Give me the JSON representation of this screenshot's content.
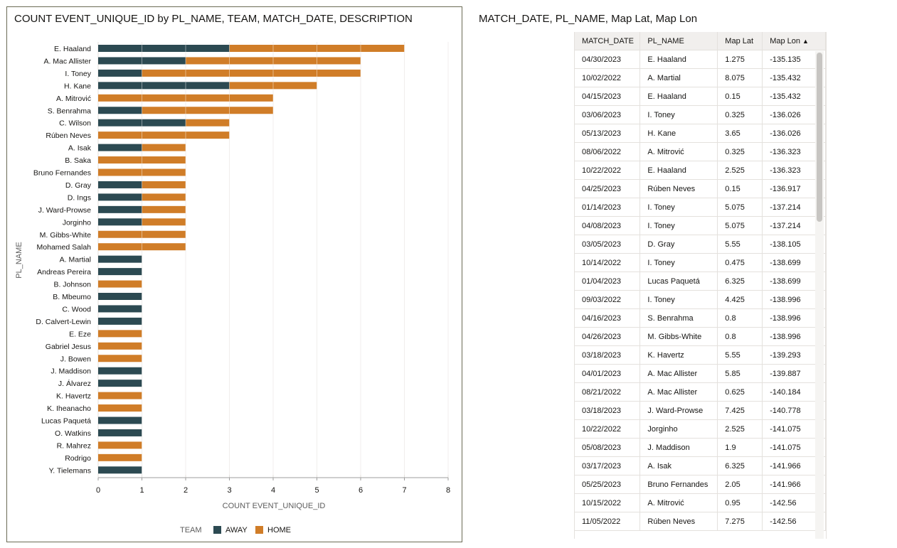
{
  "left_panel": {
    "title": "COUNT EVENT_UNIQUE_ID by PL_NAME, TEAM, MATCH_DATE, DESCRIPTION"
  },
  "right_panel": {
    "title": "MATCH_DATE, PL_NAME, Map Lat, Map Lon",
    "columns": [
      "MATCH_DATE",
      "PL_NAME",
      "Map Lat",
      "Map Lon"
    ],
    "sort_icon": "triangle-up",
    "rows": [
      [
        "04/30/2023",
        "E. Haaland",
        "1.275",
        "-135.135"
      ],
      [
        "10/02/2022",
        "A. Martial",
        "8.075",
        "-135.432"
      ],
      [
        "04/15/2023",
        "E. Haaland",
        "0.15",
        "-135.432"
      ],
      [
        "03/06/2023",
        "I. Toney",
        "0.325",
        "-136.026"
      ],
      [
        "05/13/2023",
        "H. Kane",
        "3.65",
        "-136.026"
      ],
      [
        "08/06/2022",
        "A. Mitrović",
        "0.325",
        "-136.323"
      ],
      [
        "10/22/2022",
        "E. Haaland",
        "2.525",
        "-136.323"
      ],
      [
        "04/25/2023",
        "Rúben Neves",
        "0.15",
        "-136.917"
      ],
      [
        "01/14/2023",
        "I. Toney",
        "5.075",
        "-137.214"
      ],
      [
        "04/08/2023",
        "I. Toney",
        "5.075",
        "-137.214"
      ],
      [
        "03/05/2023",
        "D. Gray",
        "5.55",
        "-138.105"
      ],
      [
        "10/14/2022",
        "I. Toney",
        "0.475",
        "-138.699"
      ],
      [
        "01/04/2023",
        "Lucas Paquetá",
        "6.325",
        "-138.699"
      ],
      [
        "09/03/2022",
        "I. Toney",
        "4.425",
        "-138.996"
      ],
      [
        "04/16/2023",
        "S. Benrahma",
        "0.8",
        "-138.996"
      ],
      [
        "04/26/2023",
        "M. Gibbs-White",
        "0.8",
        "-138.996"
      ],
      [
        "03/18/2023",
        "K. Havertz",
        "5.55",
        "-139.293"
      ],
      [
        "04/01/2023",
        "A. Mac Allister",
        "5.85",
        "-139.887"
      ],
      [
        "08/21/2022",
        "A. Mac Allister",
        "0.625",
        "-140.184"
      ],
      [
        "03/18/2023",
        "J. Ward-Prowse",
        "7.425",
        "-140.778"
      ],
      [
        "10/22/2022",
        "Jorginho",
        "2.525",
        "-141.075"
      ],
      [
        "05/08/2023",
        "J. Maddison",
        "1.9",
        "-141.075"
      ],
      [
        "03/17/2023",
        "A. Isak",
        "6.325",
        "-141.966"
      ],
      [
        "05/25/2023",
        "Bruno Fernandes",
        "2.05",
        "-141.966"
      ],
      [
        "10/15/2022",
        "A. Mitrović",
        "0.95",
        "-142.56"
      ],
      [
        "11/05/2022",
        "Rúben Neves",
        "7.275",
        "-142.56"
      ]
    ]
  },
  "chart_data": {
    "type": "bar",
    "orientation": "horizontal",
    "stacked": true,
    "xlabel": "COUNT EVENT_UNIQUE_ID",
    "ylabel": "PL_NAME",
    "xlim": [
      0,
      8
    ],
    "xticks": [
      0,
      1,
      2,
      3,
      4,
      5,
      6,
      7,
      8
    ],
    "grid": true,
    "legend_title": "TEAM",
    "legend_position": "bottom",
    "categories": [
      "E. Haaland",
      "A. Mac Allister",
      "I. Toney",
      "H. Kane",
      "A. Mitrović",
      "S. Benrahma",
      "C. Wilson",
      "Rúben Neves",
      "A. Isak",
      "B. Saka",
      "Bruno Fernandes",
      "D. Gray",
      "D. Ings",
      "J. Ward-Prowse",
      "Jorginho",
      "M. Gibbs-White",
      "Mohamed Salah",
      "A. Martial",
      "Andreas Pereira",
      "B. Johnson",
      "B. Mbeumo",
      "C. Wood",
      "D. Calvert-Lewin",
      "E. Eze",
      "Gabriel Jesus",
      "J. Bowen",
      "J. Maddison",
      "J. Álvarez",
      "K. Havertz",
      "K. Iheanacho",
      "Lucas Paquetá",
      "O. Watkins",
      "R. Mahrez",
      "Rodrigo",
      "Y. Tielemans"
    ],
    "series": [
      {
        "name": "AWAY",
        "color": "#2c4a52",
        "values": [
          3,
          2,
          1,
          3,
          0,
          1,
          2,
          0,
          1,
          0,
          0,
          1,
          1,
          1,
          1,
          0,
          0,
          1,
          1,
          0,
          1,
          1,
          1,
          0,
          0,
          0,
          1,
          1,
          0,
          0,
          1,
          1,
          0,
          0,
          1
        ]
      },
      {
        "name": "HOME",
        "color": "#d07d28",
        "values": [
          4,
          4,
          5,
          2,
          4,
          3,
          1,
          3,
          1,
          2,
          2,
          1,
          1,
          1,
          1,
          2,
          2,
          0,
          0,
          1,
          0,
          0,
          0,
          1,
          1,
          1,
          0,
          0,
          1,
          1,
          0,
          0,
          1,
          1,
          0
        ]
      }
    ]
  }
}
